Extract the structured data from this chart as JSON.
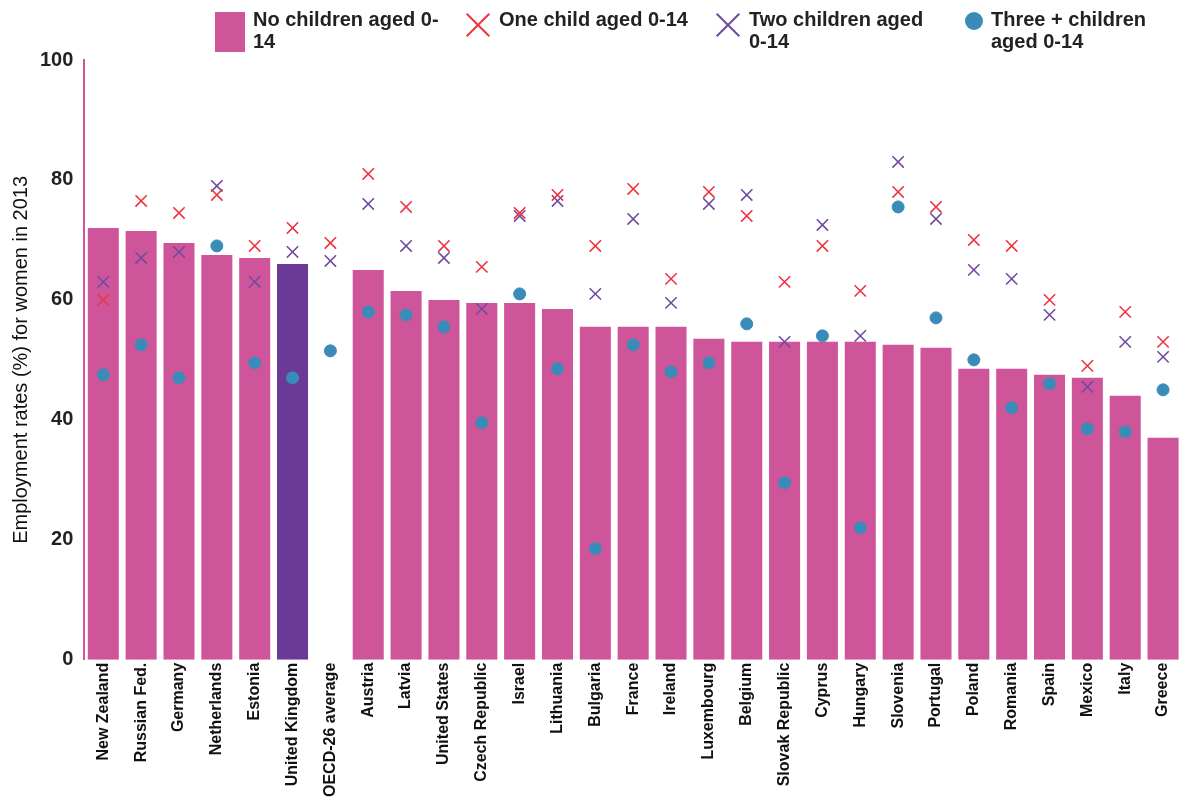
{
  "chart_data": {
    "type": "bar",
    "ylabel": "Employment rates (%) for women in 2013",
    "categories": [
      "New Zealand",
      "Russian Fed.",
      "Germany",
      "Netherlands",
      "Estonia",
      "United Kingdom",
      "OECD-26 average",
      "Austria",
      "Latvia",
      "United States",
      "Czech Republic",
      "Israel",
      "Lithuania",
      "Bulgaria",
      "France",
      "Ireland",
      "Luxembourg",
      "Belgium",
      "Slovak Republic",
      "Cyprus",
      "Hungary",
      "Slovenia",
      "Portugal",
      "Poland",
      "Romania",
      "Spain",
      "Mexico",
      "Italy",
      "Greece"
    ],
    "ylim": [
      0,
      100
    ],
    "yticks": [
      0,
      20,
      40,
      60,
      80,
      100
    ],
    "grid": false,
    "legend": "top",
    "series": [
      {
        "name": "No children aged 0-14",
        "color": "#cf559b",
        "colors": [
          "#cf559b",
          "#cf559b",
          "#cf559b",
          "#cf559b",
          "#cf559b",
          "#6b3a96",
          "#cf559b",
          "#cf559b",
          "#cf559b",
          "#cf559b",
          "#cf559b",
          "#cf559b",
          "#cf559b",
          "#cf559b",
          "#cf559b",
          "#cf559b",
          "#cf559b",
          "#cf559b",
          "#cf559b",
          "#cf559b",
          "#cf559b",
          "#cf559b",
          "#cf559b",
          "#cf559b",
          "#cf559b",
          "#cf559b",
          "#cf559b",
          "#cf559b",
          "#cf559b"
        ],
        "values": [
          72,
          71.5,
          69.5,
          67.5,
          67,
          66,
          null,
          65,
          61.5,
          60,
          59.5,
          59.5,
          58.5,
          55.5,
          55.5,
          55.5,
          53.5,
          53,
          53,
          53,
          53,
          52.5,
          52,
          48.5,
          48.5,
          47.5,
          47,
          44,
          37
        ]
      },
      {
        "name": "One child aged 0-14",
        "type": "scatter",
        "marker": "cross",
        "color": "#ee3440",
        "values": [
          60,
          76.5,
          74.5,
          77.5,
          69,
          72,
          69.5,
          81,
          75.5,
          69,
          65.5,
          74.5,
          77.5,
          69,
          78.5,
          63.5,
          78,
          74,
          63,
          69,
          61.5,
          78,
          75.5,
          70,
          69,
          60,
          49,
          58,
          53
        ]
      },
      {
        "name": "Two children aged 0-14",
        "type": "scatter",
        "marker": "cross",
        "color": "#6f4ba0",
        "values": [
          63,
          67,
          68,
          79,
          63,
          68,
          66.5,
          76,
          69,
          67,
          58.5,
          74,
          76.5,
          61,
          73.5,
          59.5,
          76,
          77.5,
          53,
          72.5,
          54,
          83,
          73.5,
          65,
          63.5,
          57.5,
          45.5,
          53,
          50.5
        ]
      },
      {
        "name": "Three + children aged 0-14",
        "type": "scatter",
        "marker": "circle",
        "color": "#3a8cb8",
        "values": [
          47.5,
          52.5,
          47,
          69,
          49.5,
          47,
          51.5,
          58,
          57.5,
          55.5,
          39.5,
          61,
          48.5,
          18.5,
          52.5,
          48,
          49.5,
          56,
          29.5,
          54,
          22,
          75.5,
          57,
          50,
          42,
          46,
          38.5,
          38,
          45
        ]
      }
    ]
  }
}
